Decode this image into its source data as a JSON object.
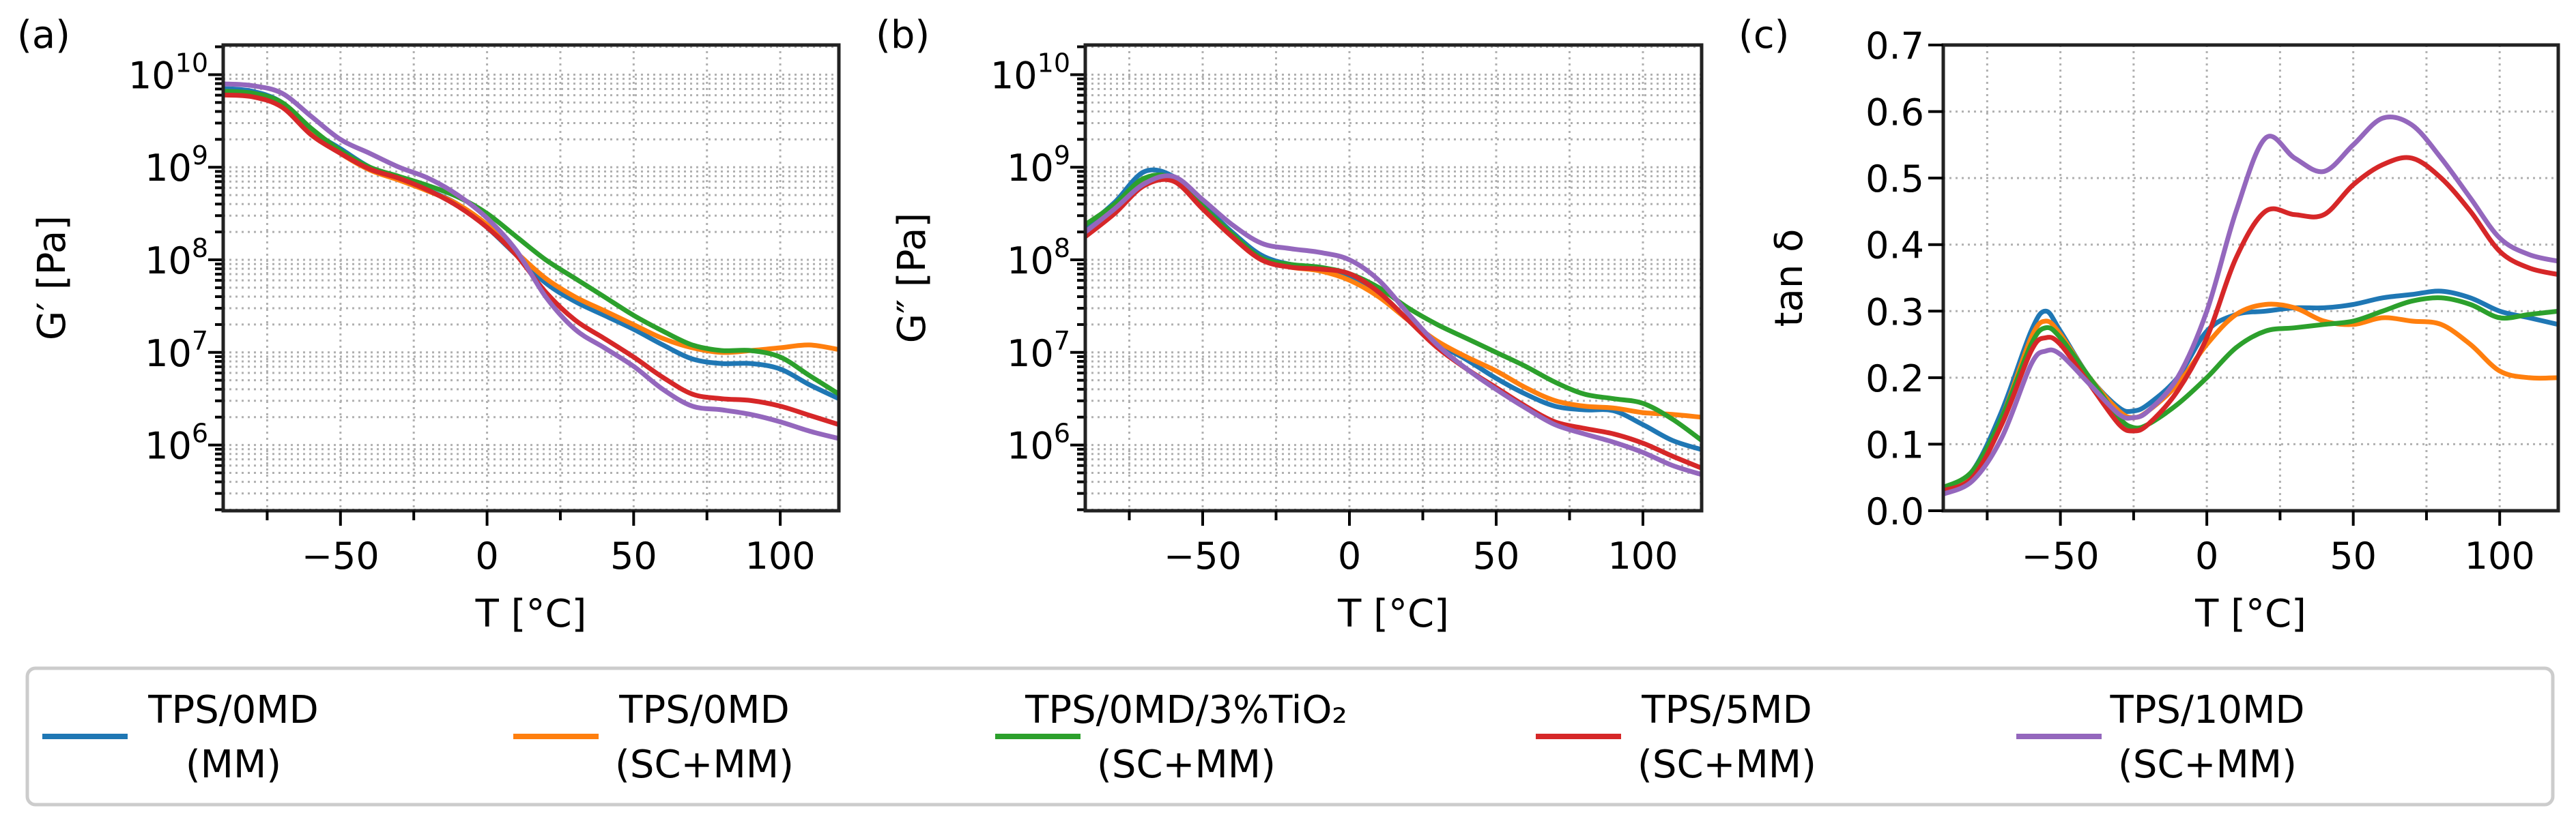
{
  "chart_data": [
    {
      "panel": "(a)",
      "type": "line",
      "yscale": "log",
      "xlabel": "T [°C]",
      "ylabel": "G′ [Pa]",
      "xlim": [
        -90,
        120
      ],
      "ylim_log10": [
        5.29,
        10.32
      ],
      "xticks": [
        -50,
        0,
        50,
        100
      ],
      "xtick_labels": [
        "−50",
        "0",
        "50",
        "100"
      ],
      "yticks_log10": [
        6,
        7,
        8,
        9,
        10
      ],
      "ytick_labels": [
        {
          "base": "10",
          "exp": "6"
        },
        {
          "base": "10",
          "exp": "7"
        },
        {
          "base": "10",
          "exp": "8"
        },
        {
          "base": "10",
          "exp": "9"
        },
        {
          "base": "10",
          "exp": "10"
        }
      ],
      "grid": true,
      "x": [
        -90,
        -80,
        -70,
        -60,
        -50,
        -40,
        -30,
        -20,
        -10,
        0,
        10,
        20,
        30,
        40,
        50,
        60,
        70,
        80,
        90,
        100,
        110,
        120
      ],
      "series_log10": [
        {
          "name": "TPS/0MD (MM)",
          "values": [
            9.85,
            9.82,
            9.7,
            9.4,
            9.2,
            9.0,
            8.88,
            8.75,
            8.6,
            8.35,
            8.05,
            7.75,
            7.55,
            7.4,
            7.25,
            7.08,
            6.93,
            6.88,
            6.88,
            6.82,
            6.65,
            6.5
          ]
        },
        {
          "name": "TPS/0MD (SC+MM)",
          "values": [
            9.8,
            9.78,
            9.68,
            9.38,
            9.15,
            8.97,
            8.86,
            8.74,
            8.6,
            8.38,
            8.08,
            7.8,
            7.6,
            7.45,
            7.3,
            7.15,
            7.05,
            7.0,
            7.02,
            7.05,
            7.08,
            7.03
          ]
        },
        {
          "name": "TPS/0MD/3%TiO2 (SC+MM)",
          "values": [
            9.82,
            9.8,
            9.7,
            9.42,
            9.18,
            9.0,
            8.9,
            8.8,
            8.68,
            8.5,
            8.25,
            8.0,
            7.8,
            7.6,
            7.4,
            7.23,
            7.08,
            7.02,
            7.02,
            6.95,
            6.75,
            6.55
          ]
        },
        {
          "name": "TPS/5MD (SC+MM)",
          "values": [
            9.78,
            9.76,
            9.65,
            9.35,
            9.15,
            8.98,
            8.88,
            8.75,
            8.58,
            8.35,
            8.05,
            7.65,
            7.35,
            7.15,
            6.95,
            6.73,
            6.55,
            6.5,
            6.48,
            6.42,
            6.32,
            6.22
          ]
        },
        {
          "name": "TPS/10MD (SC+MM)",
          "values": [
            9.9,
            9.88,
            9.8,
            9.55,
            9.3,
            9.15,
            9.0,
            8.88,
            8.7,
            8.45,
            8.1,
            7.6,
            7.25,
            7.05,
            6.85,
            6.6,
            6.42,
            6.38,
            6.33,
            6.25,
            6.15,
            6.07
          ]
        }
      ]
    },
    {
      "panel": "(b)",
      "type": "line",
      "yscale": "log",
      "xlabel": "T [°C]",
      "ylabel": "G″ [Pa]",
      "xlim": [
        -90,
        120
      ],
      "ylim_log10": [
        5.29,
        10.32
      ],
      "xticks": [
        -50,
        0,
        50,
        100
      ],
      "xtick_labels": [
        "−50",
        "0",
        "50",
        "100"
      ],
      "yticks_log10": [
        6,
        7,
        8,
        9,
        10
      ],
      "ytick_labels": [
        {
          "base": "10",
          "exp": "6"
        },
        {
          "base": "10",
          "exp": "7"
        },
        {
          "base": "10",
          "exp": "8"
        },
        {
          "base": "10",
          "exp": "9"
        },
        {
          "base": "10",
          "exp": "10"
        }
      ],
      "grid": true,
      "x": [
        -90,
        -80,
        -70,
        -60,
        -50,
        -40,
        -30,
        -20,
        -10,
        0,
        10,
        20,
        30,
        40,
        50,
        60,
        70,
        80,
        90,
        100,
        110,
        120
      ],
      "series_log10": [
        {
          "name": "TPS/0MD (MM)",
          "values": [
            8.35,
            8.62,
            8.95,
            8.9,
            8.6,
            8.3,
            8.05,
            7.95,
            7.92,
            7.83,
            7.65,
            7.35,
            7.1,
            6.92,
            6.72,
            6.55,
            6.42,
            6.38,
            6.37,
            6.22,
            6.05,
            5.95
          ]
        },
        {
          "name": "TPS/0MD (SC+MM)",
          "values": [
            8.3,
            8.55,
            8.85,
            8.88,
            8.55,
            8.25,
            8.0,
            7.92,
            7.88,
            7.78,
            7.6,
            7.35,
            7.12,
            6.95,
            6.8,
            6.62,
            6.48,
            6.42,
            6.4,
            6.35,
            6.33,
            6.3
          ]
        },
        {
          "name": "TPS/0MD/3%TiO2 (SC+MM)",
          "values": [
            8.38,
            8.6,
            8.88,
            8.88,
            8.58,
            8.28,
            8.02,
            7.95,
            7.92,
            7.85,
            7.7,
            7.48,
            7.3,
            7.15,
            7.0,
            6.85,
            6.68,
            6.55,
            6.5,
            6.45,
            6.28,
            6.05
          ]
        },
        {
          "name": "TPS/5MD (SC+MM)",
          "values": [
            8.25,
            8.5,
            8.8,
            8.85,
            8.55,
            8.25,
            8.0,
            7.92,
            7.9,
            7.85,
            7.65,
            7.35,
            7.05,
            6.82,
            6.62,
            6.42,
            6.25,
            6.18,
            6.12,
            6.02,
            5.88,
            5.75
          ]
        },
        {
          "name": "TPS/10MD (SC+MM)",
          "values": [
            8.3,
            8.55,
            8.82,
            8.9,
            8.65,
            8.38,
            8.18,
            8.12,
            8.08,
            8.0,
            7.78,
            7.42,
            7.08,
            6.82,
            6.6,
            6.4,
            6.22,
            6.12,
            6.03,
            5.92,
            5.78,
            5.68
          ]
        }
      ]
    },
    {
      "panel": "(c)",
      "type": "line",
      "yscale": "linear",
      "xlabel": "T [°C]",
      "ylabel": "tan δ",
      "xlim": [
        -90,
        120
      ],
      "ylim": [
        0,
        0.7
      ],
      "xticks": [
        -50,
        0,
        50,
        100
      ],
      "xtick_labels": [
        "−50",
        "0",
        "50",
        "100"
      ],
      "yticks": [
        0,
        0.1,
        0.2,
        0.3,
        0.4,
        0.5,
        0.6,
        0.7
      ],
      "ytick_labels": [
        "0.0",
        "0.1",
        "0.2",
        "0.3",
        "0.4",
        "0.5",
        "0.6",
        "0.7"
      ],
      "grid": true,
      "x": [
        -90,
        -80,
        -70,
        -60,
        -55,
        -50,
        -40,
        -30,
        -25,
        -20,
        -10,
        0,
        10,
        20,
        30,
        40,
        50,
        60,
        70,
        80,
        90,
        100,
        110,
        120
      ],
      "series": [
        {
          "name": "TPS/0MD (MM)",
          "values": [
            0.03,
            0.06,
            0.15,
            0.27,
            0.3,
            0.27,
            0.2,
            0.155,
            0.15,
            0.16,
            0.2,
            0.27,
            0.295,
            0.3,
            0.305,
            0.305,
            0.31,
            0.32,
            0.325,
            0.33,
            0.32,
            0.3,
            0.29,
            0.28
          ]
        },
        {
          "name": "TPS/0MD (SC+MM)",
          "values": [
            0.03,
            0.055,
            0.14,
            0.26,
            0.285,
            0.265,
            0.2,
            0.15,
            0.14,
            0.15,
            0.19,
            0.25,
            0.295,
            0.31,
            0.305,
            0.285,
            0.28,
            0.29,
            0.285,
            0.28,
            0.25,
            0.21,
            0.2,
            0.2
          ]
        },
        {
          "name": "TPS/0MD/3%TiO2 (SC+MM)",
          "values": [
            0.035,
            0.06,
            0.14,
            0.25,
            0.275,
            0.26,
            0.2,
            0.14,
            0.125,
            0.13,
            0.16,
            0.2,
            0.245,
            0.27,
            0.275,
            0.28,
            0.285,
            0.3,
            0.315,
            0.32,
            0.31,
            0.29,
            0.295,
            0.3
          ]
        },
        {
          "name": "TPS/5MD (SC+MM)",
          "values": [
            0.03,
            0.05,
            0.13,
            0.24,
            0.26,
            0.25,
            0.19,
            0.13,
            0.12,
            0.13,
            0.18,
            0.26,
            0.38,
            0.45,
            0.445,
            0.445,
            0.49,
            0.52,
            0.53,
            0.5,
            0.45,
            0.39,
            0.365,
            0.355
          ]
        },
        {
          "name": "TPS/10MD (SC+MM)",
          "values": [
            0.025,
            0.045,
            0.11,
            0.22,
            0.24,
            0.235,
            0.19,
            0.145,
            0.14,
            0.15,
            0.2,
            0.3,
            0.45,
            0.56,
            0.53,
            0.51,
            0.55,
            0.59,
            0.58,
            0.53,
            0.47,
            0.41,
            0.385,
            0.375
          ]
        }
      ]
    }
  ],
  "colors": [
    "#1f77b4",
    "#ff7f0e",
    "#2ca02c",
    "#d62728",
    "#9467bd"
  ],
  "legend": {
    "placement": "bottom",
    "entries": [
      {
        "line1": "TPS/0MD",
        "line2": "(MM)"
      },
      {
        "line1": "TPS/0MD",
        "line2": "(SC+MM)"
      },
      {
        "line1": "TPS/0MD/3%TiO₂",
        "line2": "(SC+MM)"
      },
      {
        "line1": "TPS/5MD",
        "line2": "(SC+MM)"
      },
      {
        "line1": "TPS/10MD",
        "line2": "(SC+MM)"
      }
    ]
  }
}
